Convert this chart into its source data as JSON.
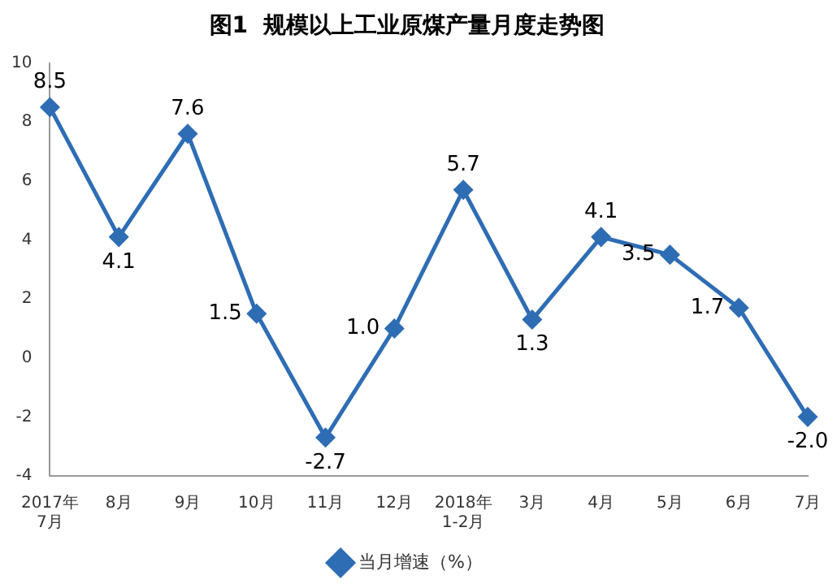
{
  "chart_data": {
    "type": "line",
    "title": "图1  规模以上工业原煤产量月度走势图",
    "categories": [
      "2017年7月",
      "8月",
      "9月",
      "10月",
      "11月",
      "12月",
      "2018年1-2月",
      "3月",
      "4月",
      "5月",
      "6月",
      "7月"
    ],
    "series": [
      {
        "name": "当月增速（%）",
        "color": "#2e6db4",
        "values": [
          8.5,
          4.1,
          7.6,
          1.5,
          -2.7,
          1.0,
          5.7,
          1.3,
          4.1,
          3.5,
          1.7,
          -2.0
        ],
        "value_labels": [
          "8.5",
          "4.1",
          "7.6",
          "1.5",
          "-2.7",
          "1.0",
          "5.7",
          "1.3",
          "4.1",
          "3.5",
          "1.7",
          "-2.0"
        ]
      }
    ],
    "ylim": [
      -4,
      10
    ],
    "yticks": [
      -4,
      -2,
      0,
      2,
      4,
      6,
      8,
      10
    ],
    "grid": false,
    "legend": "bottom",
    "marker": "diamond",
    "line_style": "solid"
  }
}
